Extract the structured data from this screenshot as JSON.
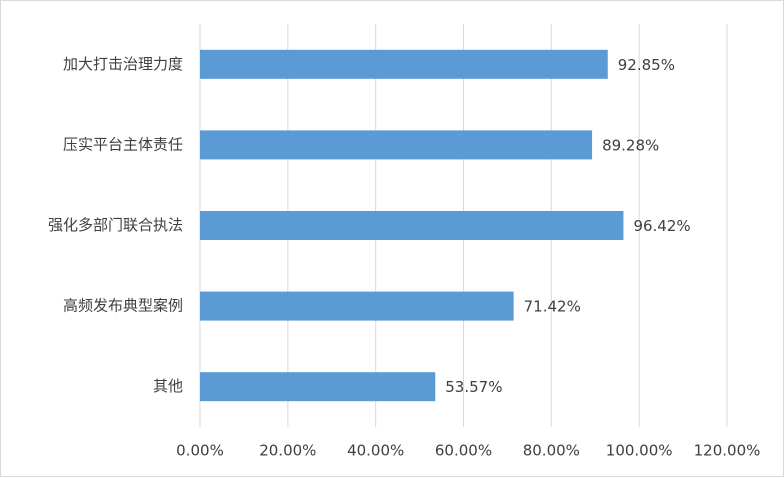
{
  "chart_data": {
    "type": "bar",
    "orientation": "horizontal",
    "categories": [
      "加大打击治理力度",
      "压实平台主体责任",
      "强化多部门联合执法",
      "高频发布典型案例",
      "其他"
    ],
    "values": [
      92.85,
      89.28,
      96.42,
      71.42,
      53.57
    ],
    "value_labels": [
      "92.85%",
      "89.28%",
      "96.42%",
      "71.42%",
      "53.57%"
    ],
    "color": "#5b9bd5",
    "xlim": [
      0,
      120
    ],
    "xticks": [
      {
        "value": 0,
        "label": "0.00%"
      },
      {
        "value": 20,
        "label": "20.00%"
      },
      {
        "value": 40,
        "label": "40.00%"
      },
      {
        "value": 60,
        "label": "60.00%"
      },
      {
        "value": 80,
        "label": "80.00%"
      },
      {
        "value": 100,
        "label": "100.00%"
      },
      {
        "value": 120,
        "label": "120.00%"
      }
    ],
    "grid": true
  }
}
